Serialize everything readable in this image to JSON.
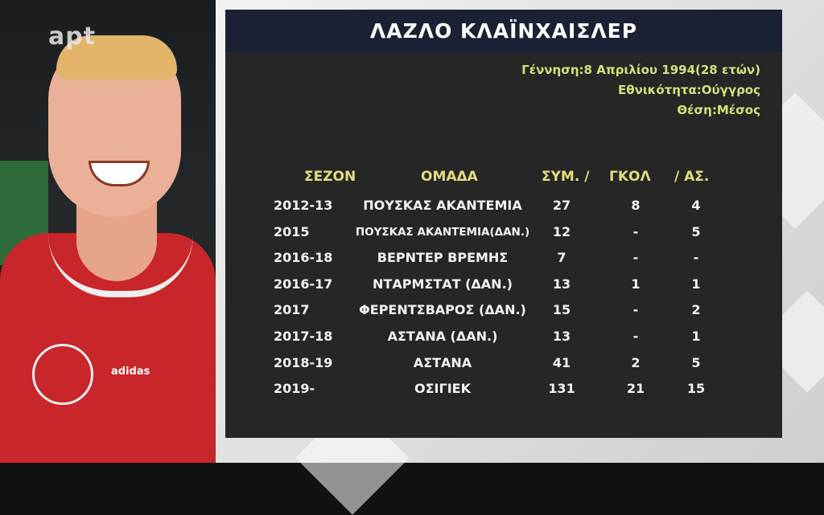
{
  "logo": "apt",
  "player": {
    "name": "ΛΑΖΛΟ ΚΛΑΪΝΧΑΙΣΛΕΡ",
    "birth": "Γέννηση:8 Απριλίου 1994(28 ετών)",
    "nationality": "Εθνικότητα:Ούγγρος",
    "position": "Θέση:Μέσος",
    "kit_brand": "adidas"
  },
  "table": {
    "headers": {
      "season": "ΣΕΖΟΝ",
      "team": "ΟΜΑΔΑ",
      "apps": "ΣΥΜ. /",
      "goals": "ΓΚΟΛ",
      "assists": "/ ΑΣ."
    },
    "rows": [
      {
        "season": "2012-13",
        "team": "ΠΟΥΣΚΑΣ ΑΚΑΝΤΕΜΙΑ",
        "apps": "27",
        "goals": "8",
        "assists": "4"
      },
      {
        "season": "2015",
        "team": "ΠΟΥΣΚΑΣ ΑΚΑΝΤΕΜΙΑ(ΔΑΝ.)",
        "apps": "12",
        "goals": "-",
        "assists": "5"
      },
      {
        "season": "2016-18",
        "team": "ΒΕΡΝΤΕΡ ΒΡΕΜΗΣ",
        "apps": "7",
        "goals": "-",
        "assists": "-"
      },
      {
        "season": "2016-17",
        "team": "ΝΤΑΡΜΣΤΑΤ (ΔΑΝ.)",
        "apps": "13",
        "goals": "1",
        "assists": "1"
      },
      {
        "season": "2017",
        "team": "ΦΕΡΕΝΤΣΒΑΡΟΣ (ΔΑΝ.)",
        "apps": "15",
        "goals": "-",
        "assists": "2"
      },
      {
        "season": "2017-18",
        "team": "ΑΣΤΑΝΑ (ΔΑΝ.)",
        "apps": "13",
        "goals": "-",
        "assists": "1"
      },
      {
        "season": "2018-19",
        "team": "ΑΣΤΑΝΑ",
        "apps": "41",
        "goals": "2",
        "assists": "5"
      },
      {
        "season": "2019-",
        "team": "ΟΣΙΓΙΕΚ",
        "apps": "131",
        "goals": "21",
        "assists": "15"
      }
    ]
  }
}
